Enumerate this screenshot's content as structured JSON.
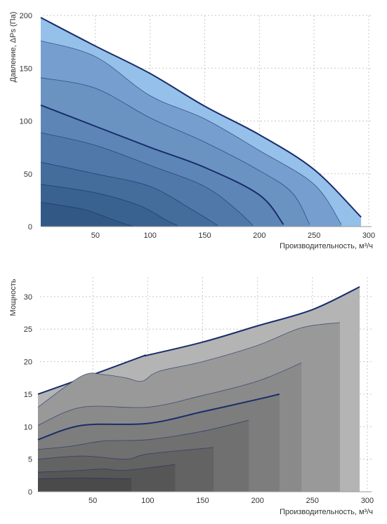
{
  "chart_data": [
    {
      "type": "area",
      "title": "",
      "xlabel": "Производительность, м³/ч",
      "ylabel": "Давление, ΔPs (Па)",
      "xlim": [
        0,
        300
      ],
      "ylim": [
        0,
        200
      ],
      "x_ticks": [
        "50",
        "100",
        "150",
        "200",
        "250",
        "300"
      ],
      "y_ticks": [
        "0",
        "50",
        "100",
        "150",
        "200"
      ],
      "grid": true,
      "colors": {
        "outline": "#1a2d6b",
        "fills": [
          "#95c0ea",
          "#769fcf",
          "#6a93c2",
          "#5d86b6",
          "#5079a9",
          "#446d9c",
          "#3a6290",
          "#325985"
        ]
      },
      "series": [
        {
          "points": [
            [
              0,
              198
            ],
            [
              50,
              171
            ],
            [
              100,
              145
            ],
            [
              150,
              114
            ],
            [
              200,
              87
            ],
            [
              250,
              54
            ],
            [
              293,
              9
            ]
          ]
        },
        {
          "points": [
            [
              0,
              176
            ],
            [
              50,
              161
            ],
            [
              100,
              124
            ],
            [
              150,
              102
            ],
            [
              200,
              72
            ],
            [
              250,
              40
            ],
            [
              275,
              2
            ]
          ]
        },
        {
          "points": [
            [
              0,
              141
            ],
            [
              50,
              131
            ],
            [
              100,
              103
            ],
            [
              150,
              80
            ],
            [
              200,
              53
            ],
            [
              230,
              32
            ],
            [
              246,
              2
            ]
          ]
        },
        {
          "points": [
            [
              0,
              115
            ],
            [
              50,
              95
            ],
            [
              100,
              75
            ],
            [
              150,
              56
            ],
            [
              200,
              30
            ],
            [
              222,
              2
            ]
          ]
        },
        {
          "points": [
            [
              0,
              89
            ],
            [
              50,
              77
            ],
            [
              100,
              58
            ],
            [
              150,
              38
            ],
            [
              180,
              15
            ],
            [
              194,
              1
            ]
          ]
        },
        {
          "points": [
            [
              0,
              61
            ],
            [
              50,
              50
            ],
            [
              100,
              38
            ],
            [
              140,
              15
            ],
            [
              162,
              1
            ]
          ]
        },
        {
          "points": [
            [
              0,
              40
            ],
            [
              50,
              32
            ],
            [
              90,
              20
            ],
            [
              115,
              6
            ],
            [
              125,
              1
            ]
          ]
        },
        {
          "points": [
            [
              0,
              23
            ],
            [
              40,
              16
            ],
            [
              70,
              5
            ],
            [
              85,
              0
            ]
          ]
        }
      ]
    },
    {
      "type": "area",
      "title": "",
      "xlabel": "Производительность, м³/ч",
      "ylabel": "Мощность",
      "xlim": [
        0,
        300
      ],
      "ylim": [
        0,
        33
      ],
      "x_ticks": [
        "50",
        "100",
        "150",
        "200",
        "250",
        "300"
      ],
      "y_ticks": [
        "0",
        "5",
        "10",
        "15",
        "20",
        "25",
        "30"
      ],
      "grid": true,
      "colors": {
        "outline": "#1a2d6b",
        "fills": [
          "#b4b4b4",
          "#999999",
          "#8a8a8a",
          "#7d7d7d",
          "#707070",
          "#636363",
          "#565656",
          "#4a4a4a"
        ]
      },
      "series": [
        {
          "points": [
            [
              0,
              15
            ],
            [
              50,
              18
            ],
            [
              95,
              20.8
            ],
            [
              100,
              21
            ],
            [
              150,
              23
            ],
            [
              200,
              25.5
            ],
            [
              250,
              28
            ],
            [
              293,
              31.5
            ]
          ],
          "end": 293
        },
        {
          "points": [
            [
              0,
              13
            ],
            [
              40,
              17.8
            ],
            [
              60,
              18
            ],
            [
              80,
              17.5
            ],
            [
              95,
              17
            ],
            [
              110,
              18.5
            ],
            [
              150,
              20
            ],
            [
              200,
              22.5
            ],
            [
              240,
              25.2
            ],
            [
              275,
              26
            ]
          ],
          "end": 275
        },
        {
          "points": [
            [
              0,
              10.2
            ],
            [
              40,
              13
            ],
            [
              100,
              13
            ],
            [
              150,
              14.8
            ],
            [
              200,
              17
            ],
            [
              240,
              19.8
            ]
          ],
          "end": 240
        },
        {
          "points": [
            [
              0,
              8
            ],
            [
              40,
              10.2
            ],
            [
              100,
              10.5
            ],
            [
              150,
              12.3
            ],
            [
              200,
              14.2
            ],
            [
              220,
              15
            ]
          ],
          "end": 220
        },
        {
          "points": [
            [
              0,
              6.5
            ],
            [
              30,
              7
            ],
            [
              60,
              7.8
            ],
            [
              100,
              8
            ],
            [
              150,
              9.3
            ],
            [
              192,
              11
            ]
          ],
          "end": 192
        },
        {
          "points": [
            [
              0,
              5
            ],
            [
              40,
              5.5
            ],
            [
              80,
              5
            ],
            [
              100,
              5.8
            ],
            [
              160,
              6.8
            ]
          ],
          "end": 160
        },
        {
          "points": [
            [
              0,
              3
            ],
            [
              40,
              3.3
            ],
            [
              60,
              3.5
            ],
            [
              80,
              3.3
            ],
            [
              125,
              4.2
            ]
          ],
          "end": 125
        },
        {
          "points": [
            [
              0,
              2
            ],
            [
              40,
              2.1
            ],
            [
              80,
              2
            ],
            [
              85,
              2
            ]
          ],
          "end": 85
        }
      ]
    }
  ]
}
